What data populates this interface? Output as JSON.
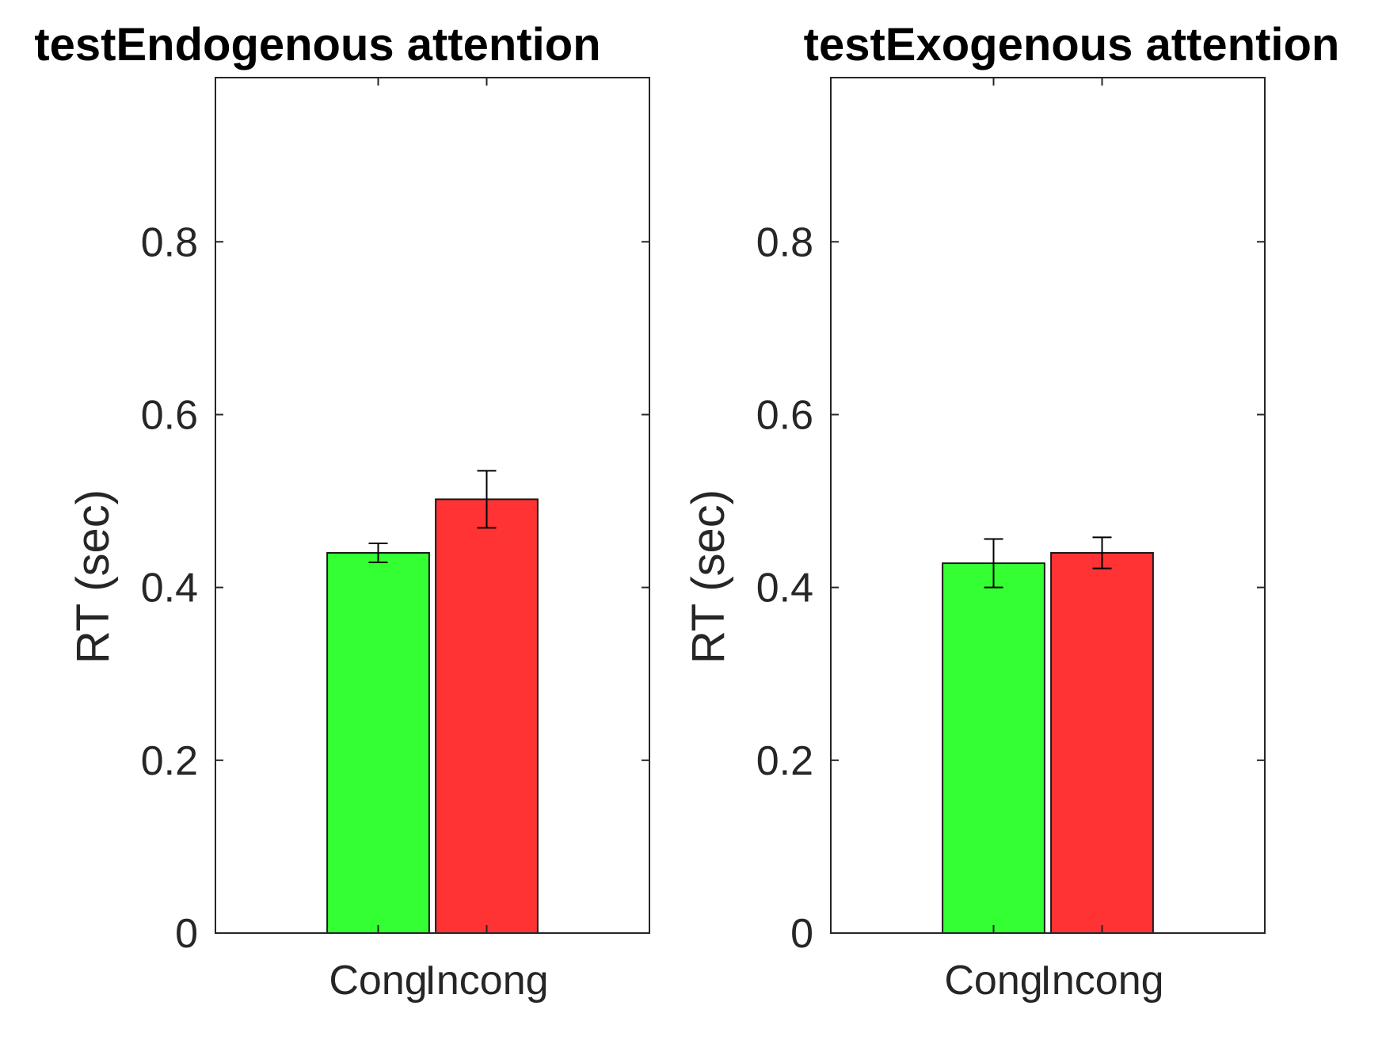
{
  "chart_data": [
    {
      "type": "bar",
      "title": "testEndogenous attention",
      "xlabel": "",
      "ylabel": "RT (sec)",
      "categories": [
        "Cong",
        "Incong"
      ],
      "values": [
        0.44,
        0.502
      ],
      "error": [
        0.011,
        0.033
      ],
      "colors": [
        "#33ff33",
        "#ff3333"
      ],
      "ylim": [
        0,
        0.99
      ],
      "yticks": [
        0,
        0.2,
        0.4,
        0.6,
        0.8
      ],
      "ytick_labels": [
        "0",
        "0.2",
        "0.4",
        "0.6",
        "0.8"
      ],
      "grid": false,
      "legend": "none"
    },
    {
      "type": "bar",
      "title": "testExogenous attention",
      "xlabel": "",
      "ylabel": "RT (sec)",
      "categories": [
        "Cong",
        "Incong"
      ],
      "values": [
        0.428,
        0.44
      ],
      "error": [
        0.028,
        0.018
      ],
      "colors": [
        "#33ff33",
        "#ff3333"
      ],
      "ylim": [
        0,
        0.99
      ],
      "yticks": [
        0,
        0.2,
        0.4,
        0.6,
        0.8
      ],
      "ytick_labels": [
        "0",
        "0.2",
        "0.4",
        "0.6",
        "0.8"
      ],
      "grid": false,
      "legend": "none"
    }
  ]
}
